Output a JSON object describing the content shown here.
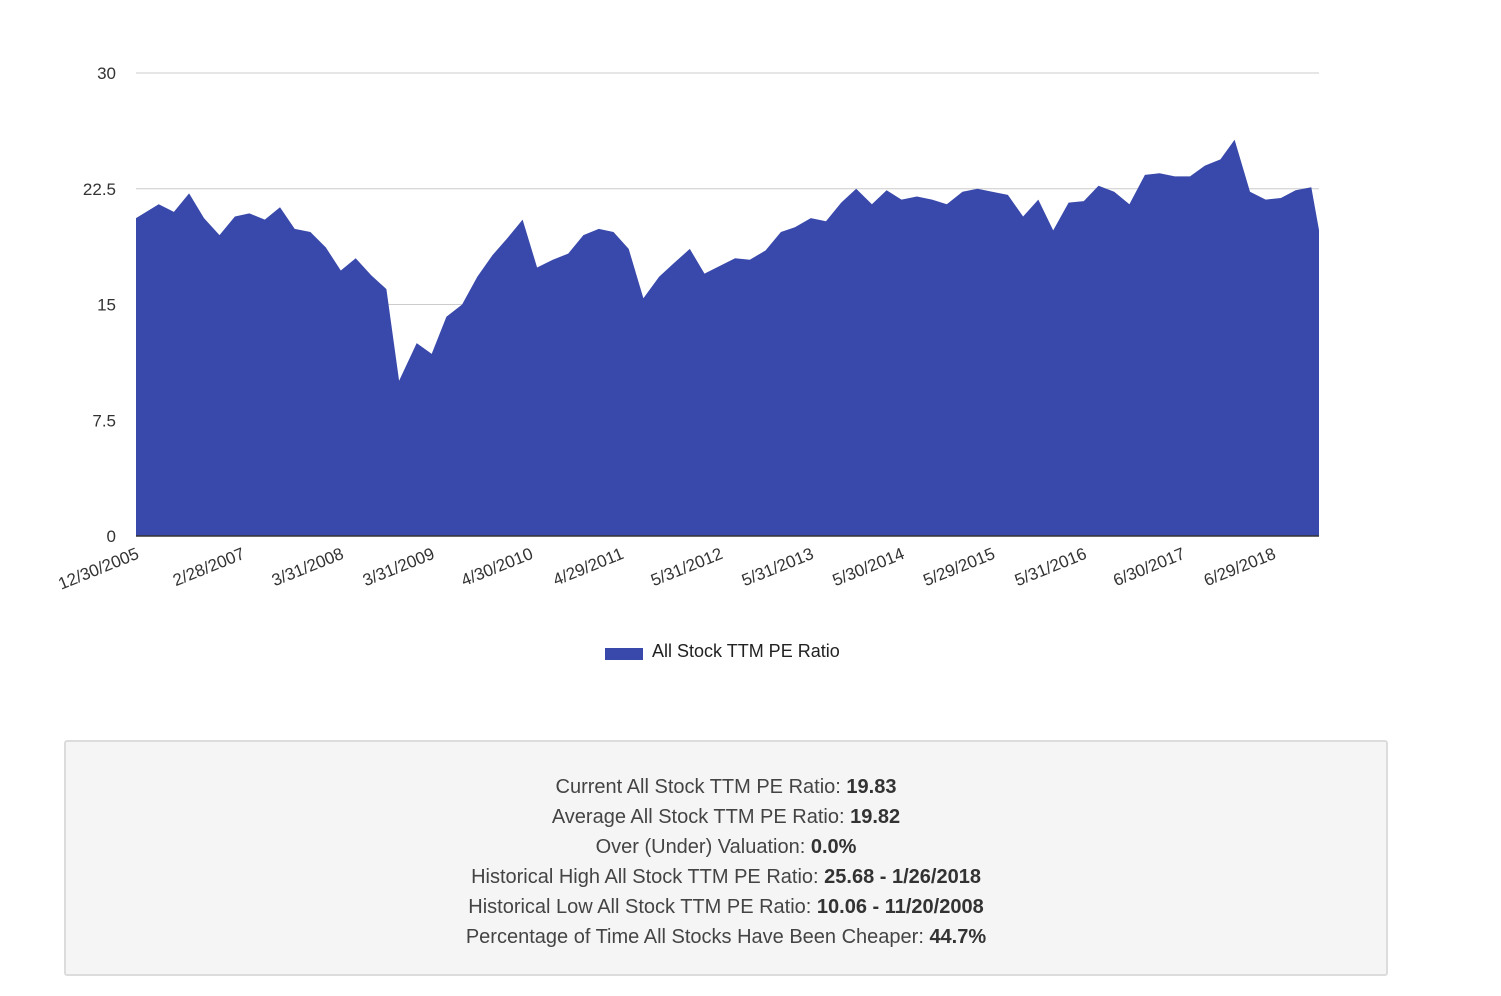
{
  "chart_data": {
    "type": "area",
    "title": "",
    "xlabel": "",
    "ylabel": "",
    "ylim": [
      0,
      30
    ],
    "y_ticks": [
      "0",
      "7.5",
      "15",
      "22.5",
      "30"
    ],
    "x_ticks": [
      "12/30/2005",
      "2/28/2007",
      "3/31/2008",
      "3/31/2009",
      "4/30/2010",
      "4/29/2011",
      "5/31/2012",
      "5/31/2013",
      "5/30/2014",
      "5/29/2015",
      "5/31/2016",
      "6/30/2017",
      "6/29/2018"
    ],
    "x_range": [
      "2005-12-30",
      "2018-12-31"
    ],
    "grid": "horizontal",
    "legend_position": "bottom-center",
    "color": "#3949ab",
    "series": [
      {
        "name": "All Stock TTM PE Ratio",
        "x": [
          "2005-12-30",
          "2006-03-31",
          "2006-05-31",
          "2006-07-31",
          "2006-09-29",
          "2006-11-30",
          "2007-01-31",
          "2007-03-30",
          "2007-05-31",
          "2007-07-31",
          "2007-09-28",
          "2007-11-30",
          "2008-01-31",
          "2008-03-31",
          "2008-05-30",
          "2008-07-31",
          "2008-09-30",
          "2008-11-20",
          "2009-01-30",
          "2009-03-31",
          "2009-05-29",
          "2009-07-31",
          "2009-09-30",
          "2009-11-30",
          "2010-01-29",
          "2010-03-31",
          "2010-05-28",
          "2010-07-30",
          "2010-09-30",
          "2010-11-30",
          "2011-01-31",
          "2011-03-31",
          "2011-05-31",
          "2011-07-29",
          "2011-09-30",
          "2011-11-30",
          "2012-01-31",
          "2012-03-30",
          "2012-05-31",
          "2012-07-31",
          "2012-09-28",
          "2012-11-30",
          "2013-01-31",
          "2013-03-28",
          "2013-05-31",
          "2013-07-31",
          "2013-09-30",
          "2013-11-29",
          "2014-01-31",
          "2014-03-31",
          "2014-05-30",
          "2014-07-31",
          "2014-09-30",
          "2014-11-28",
          "2015-01-30",
          "2015-03-31",
          "2015-05-29",
          "2015-07-31",
          "2015-09-30",
          "2015-11-30",
          "2016-01-29",
          "2016-03-31",
          "2016-05-31",
          "2016-07-29",
          "2016-09-30",
          "2016-11-30",
          "2017-01-31",
          "2017-03-31",
          "2017-05-31",
          "2017-07-31",
          "2017-09-29",
          "2017-11-30",
          "2018-01-26",
          "2018-03-29",
          "2018-05-31",
          "2018-07-31",
          "2018-09-28",
          "2018-11-30",
          "2018-12-31"
        ],
        "values": [
          20.6,
          21.5,
          21.0,
          22.2,
          20.6,
          19.5,
          20.7,
          20.9,
          20.5,
          21.3,
          19.9,
          19.7,
          18.7,
          17.2,
          18.0,
          16.9,
          16.0,
          10.06,
          12.5,
          11.8,
          14.2,
          15.0,
          16.8,
          18.2,
          19.3,
          20.5,
          17.4,
          17.9,
          18.3,
          19.5,
          19.9,
          19.7,
          18.6,
          15.4,
          16.8,
          17.7,
          18.6,
          17.0,
          17.5,
          18.0,
          17.9,
          18.5,
          19.7,
          20.0,
          20.6,
          20.4,
          21.6,
          22.5,
          21.5,
          22.4,
          21.8,
          22.0,
          21.8,
          21.5,
          22.3,
          22.5,
          22.3,
          22.1,
          20.7,
          21.8,
          19.8,
          21.6,
          21.7,
          22.7,
          22.3,
          21.5,
          23.4,
          23.5,
          23.3,
          23.3,
          24.0,
          24.4,
          25.68,
          22.3,
          21.8,
          21.9,
          22.4,
          22.6,
          19.83
        ]
      }
    ]
  },
  "stats": {
    "current_label": "Current All Stock TTM PE Ratio:",
    "current_value": "19.83",
    "average_label": "Average All Stock TTM PE Ratio:",
    "average_value": "19.82",
    "valuation_label": "Over (Under) Valuation:",
    "valuation_value": "0.0%",
    "high_label": "Historical High All Stock TTM PE Ratio:",
    "high_value": "25.68 - 1/26/2018",
    "low_label": "Historical Low All Stock TTM PE Ratio:",
    "low_value": "10.06 - 11/20/2008",
    "cheaper_label": "Percentage of Time All Stocks Have Been Cheaper:",
    "cheaper_value": "44.7%"
  }
}
